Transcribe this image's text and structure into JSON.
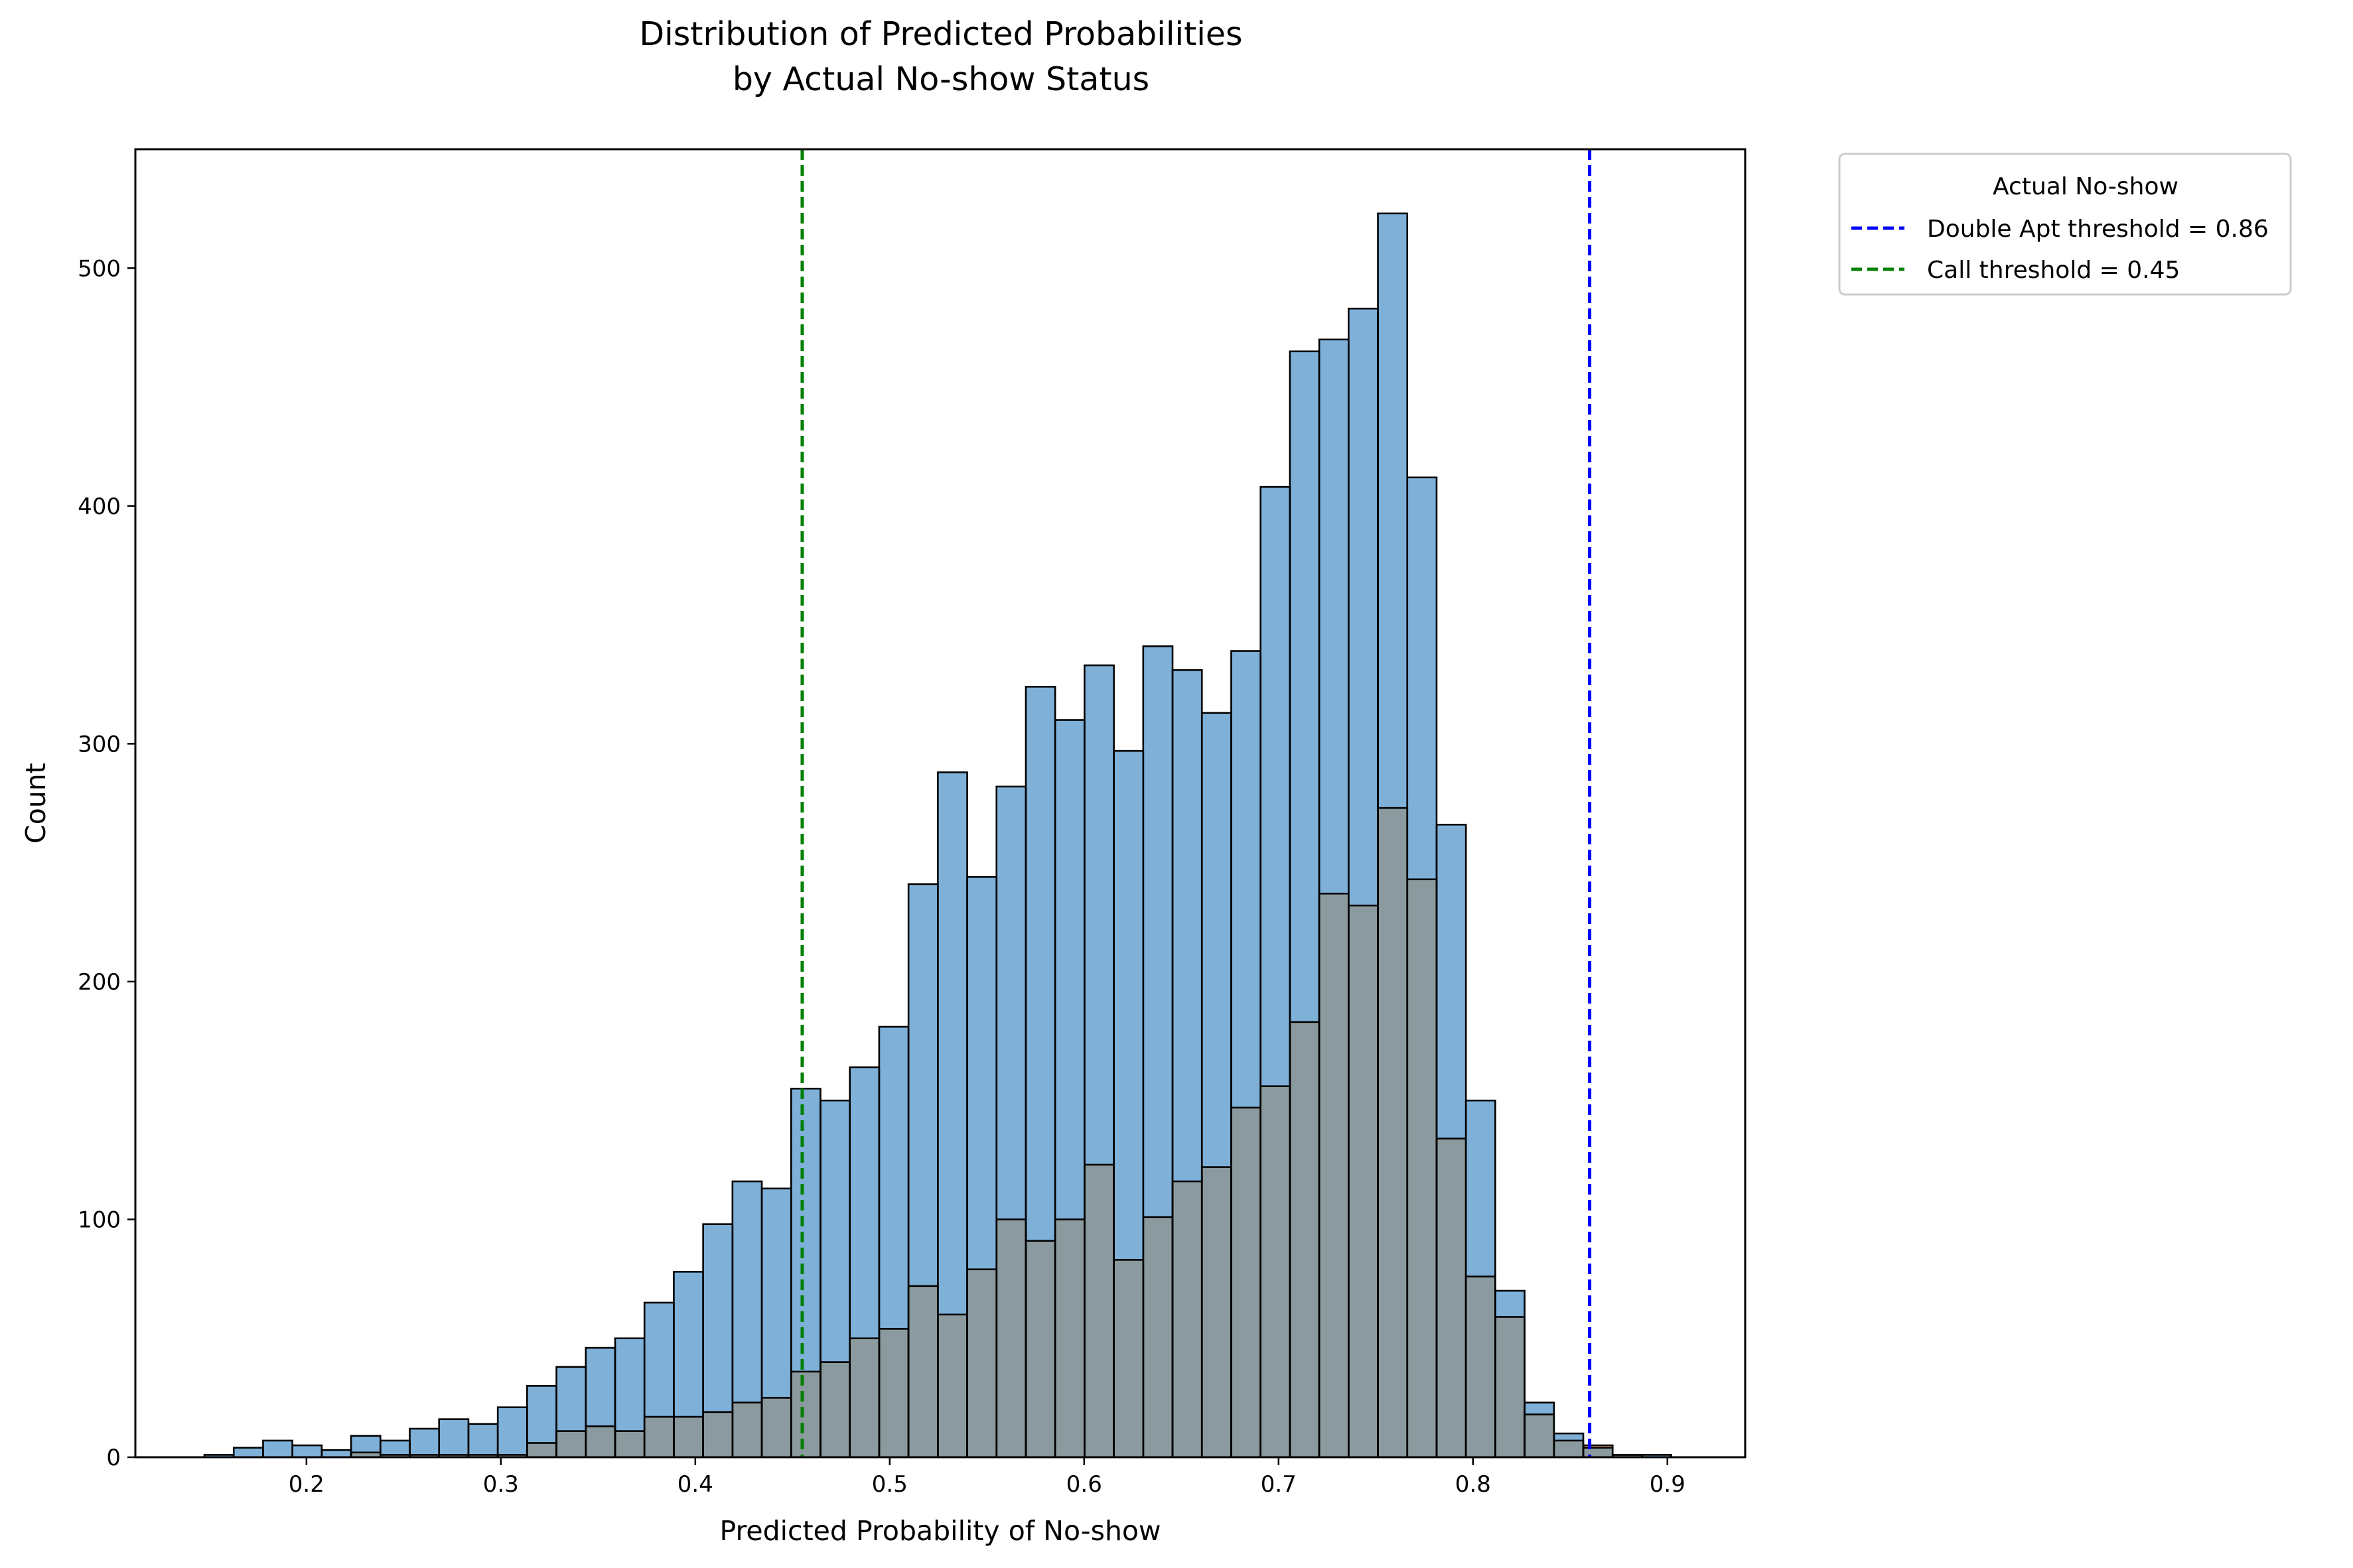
{
  "chart_data": {
    "type": "bar",
    "title": [
      "Distribution of Predicted Probabilities",
      "by Actual No-show Status"
    ],
    "xlabel": "Predicted Probability of No-show",
    "ylabel": "Count",
    "xlim": [
      0.112,
      0.94
    ],
    "ylim": [
      0,
      550
    ],
    "xticks": [
      0.2,
      0.3,
      0.4,
      0.5,
      0.6,
      0.7,
      0.8,
      0.9
    ],
    "xtick_labels": [
      "0.2",
      "0.3",
      "0.4",
      "0.5",
      "0.6",
      "0.7",
      "0.8",
      "0.9"
    ],
    "yticks": [
      0,
      100,
      200,
      300,
      400,
      500
    ],
    "ytick_labels": [
      "0",
      "100",
      "200",
      "300",
      "400",
      "500"
    ],
    "grid": false,
    "bin_start": 0.1475,
    "bin_width": 0.01509,
    "series": [
      {
        "values": [
          1,
          4,
          7,
          5,
          3,
          9,
          7,
          12,
          16,
          14,
          21,
          30,
          38,
          46,
          50,
          65,
          78,
          98,
          116,
          113,
          155,
          150,
          164,
          181,
          241,
          288,
          244,
          282,
          324,
          310,
          333,
          297,
          341,
          331,
          313,
          339,
          408,
          465,
          470,
          483,
          523,
          412,
          266,
          150,
          70,
          23,
          10,
          4,
          1,
          1
        ],
        "color": "#7fb0d8"
      },
      {
        "values": [
          0,
          0,
          0,
          0,
          0,
          2,
          1,
          1,
          1,
          1,
          1,
          6,
          11,
          13,
          11,
          17,
          17,
          19,
          23,
          25,
          36,
          40,
          50,
          54,
          72,
          60,
          79,
          100,
          91,
          100,
          123,
          83,
          101,
          116,
          122,
          147,
          156,
          183,
          237,
          232,
          273,
          243,
          134,
          76,
          59,
          18,
          7,
          5,
          1,
          0
        ],
        "color": "#f5a35b"
      }
    ],
    "overlap_color": "#8b9a9e",
    "vlines": [
      {
        "x": 0.86,
        "color": "#0000ff",
        "style": "dashed"
      },
      {
        "x": 0.455,
        "color": "#008000",
        "style": "dashed"
      }
    ],
    "legend": {
      "title": "Actual No-show",
      "placement": "outside-top-right",
      "entries": [
        {
          "label": "Double Apt threshold = 0.86",
          "color": "#0000ff"
        },
        {
          "label": "Call threshold = 0.45",
          "color": "#008000"
        }
      ]
    }
  }
}
